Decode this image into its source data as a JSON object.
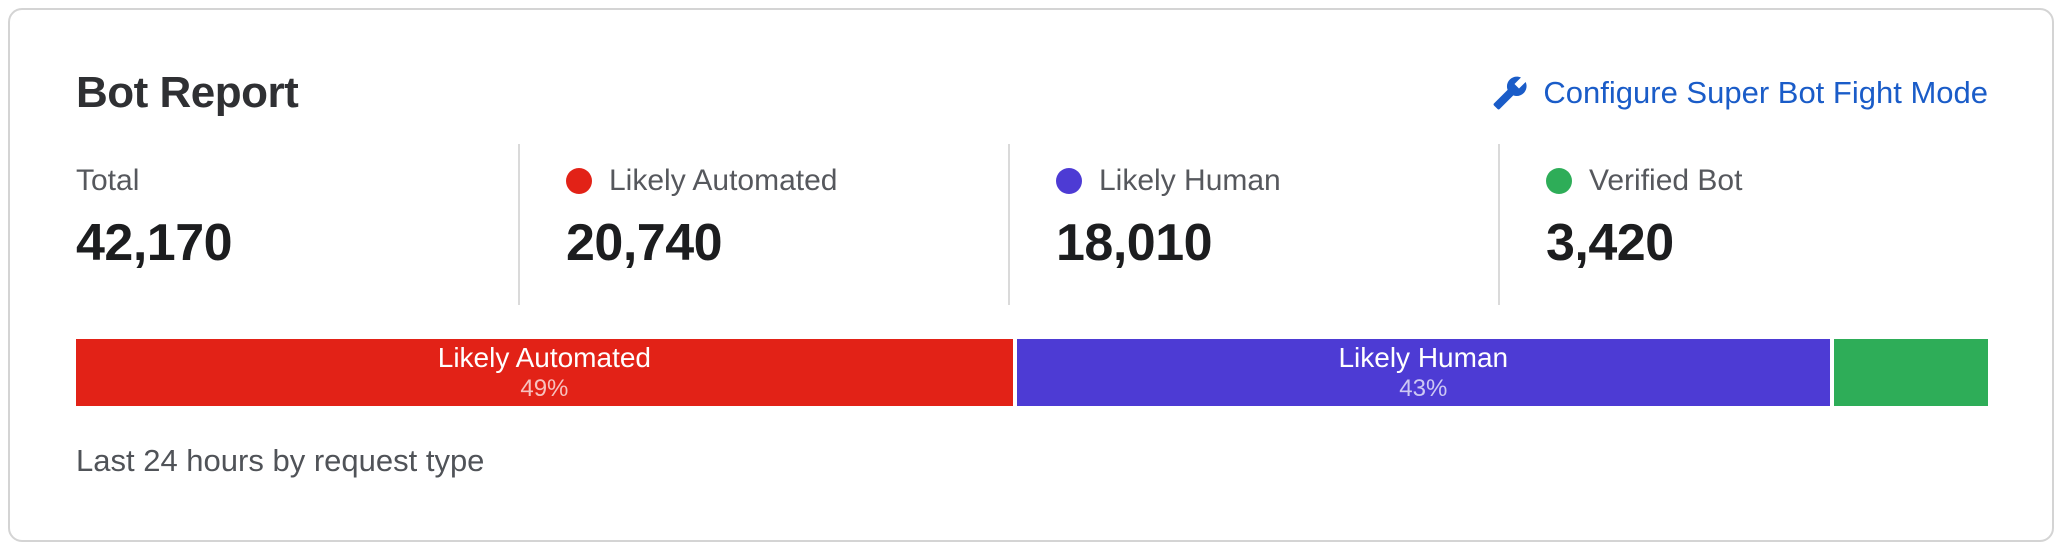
{
  "card": {
    "title": "Bot Report",
    "configure_link": {
      "label": "Configure Super Bot Fight Mode",
      "icon": "wrench-icon",
      "color": "#1a5cc8"
    },
    "footer_caption": "Last 24 hours by request type"
  },
  "stats": [
    {
      "label": "Total",
      "value": "42,170",
      "dot_color": null
    },
    {
      "label": "Likely Automated",
      "value": "20,740",
      "dot_color": "#e22217"
    },
    {
      "label": "Likely Human",
      "value": "18,010",
      "dot_color": "#4d3bd4"
    },
    {
      "label": "Verified Bot",
      "value": "3,420",
      "dot_color": "#2ead58"
    }
  ],
  "chart_data": {
    "type": "bar",
    "variant": "stacked-horizontal",
    "title": "Bot Report",
    "caption": "Last 24 hours by request type",
    "total": 42170,
    "segments": [
      {
        "label": "Likely Automated",
        "value": 20740,
        "percent_label": "49%",
        "share_pct": 49.2,
        "color": "#e22217",
        "show_label": true
      },
      {
        "label": "Likely Human",
        "value": 18010,
        "percent_label": "43%",
        "share_pct": 42.7,
        "color": "#4d3bd4",
        "show_label": true
      },
      {
        "label": "Verified Bot",
        "value": 3420,
        "percent_label": null,
        "share_pct": 8.1,
        "color": "#2ead58",
        "show_label": false
      }
    ]
  }
}
